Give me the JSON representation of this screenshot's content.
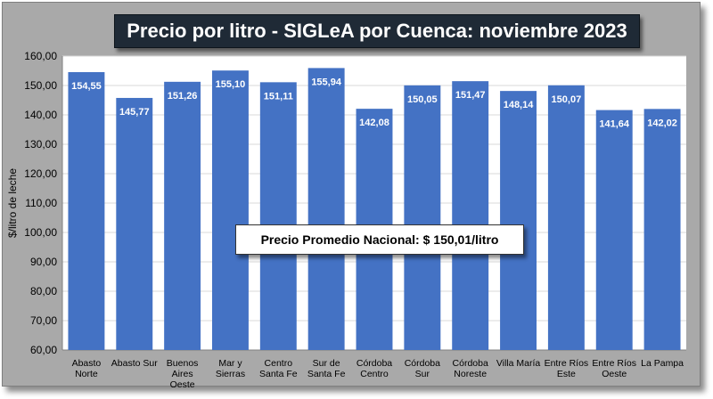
{
  "title": "Precio por litro - SIGLeA por Cuenca: noviembre 2023",
  "annotation": "Precio Promedio Nacional: $ 150,01/litro",
  "colors": {
    "bar": "#4472c4",
    "background": "#a9a9a9",
    "title_background": "#1f2a36",
    "gridline": "#d9d9d9"
  },
  "chart_data": {
    "type": "bar",
    "title": "Precio por litro - SIGLeA por Cuenca: noviembre 2023",
    "xlabel": "",
    "ylabel": "$/litro de leche",
    "ylim": [
      60,
      160
    ],
    "yticks": [
      "60,00",
      "70,00",
      "80,00",
      "90,00",
      "100,00",
      "110,00",
      "120,00",
      "130,00",
      "140,00",
      "150,00",
      "160,00"
    ],
    "grid": true,
    "categories": [
      [
        "Abasto",
        "Norte"
      ],
      [
        "Abasto Sur"
      ],
      [
        "Buenos",
        "Aires",
        "Oeste"
      ],
      [
        "Mar y",
        "Sierras"
      ],
      [
        "Centro",
        "Santa Fe"
      ],
      [
        "Sur de",
        "Santa Fe"
      ],
      [
        "Córdoba",
        "Centro"
      ],
      [
        "Córdoba",
        "Sur"
      ],
      [
        "Córdoba",
        "Noreste"
      ],
      [
        "Villa María"
      ],
      [
        "Entre Ríos",
        "Este"
      ],
      [
        "Entre Ríos",
        "Oeste"
      ],
      [
        "La Pampa"
      ]
    ],
    "values": [
      154.55,
      145.77,
      151.26,
      155.1,
      151.11,
      155.94,
      142.08,
      150.05,
      151.47,
      148.14,
      150.07,
      141.64,
      142.02
    ],
    "labels": [
      "154,55",
      "145,77",
      "151,26",
      "155,10",
      "151,11",
      "155,94",
      "142,08",
      "150,05",
      "151,47",
      "148,14",
      "150,07",
      "141,64",
      "142,02"
    ]
  }
}
